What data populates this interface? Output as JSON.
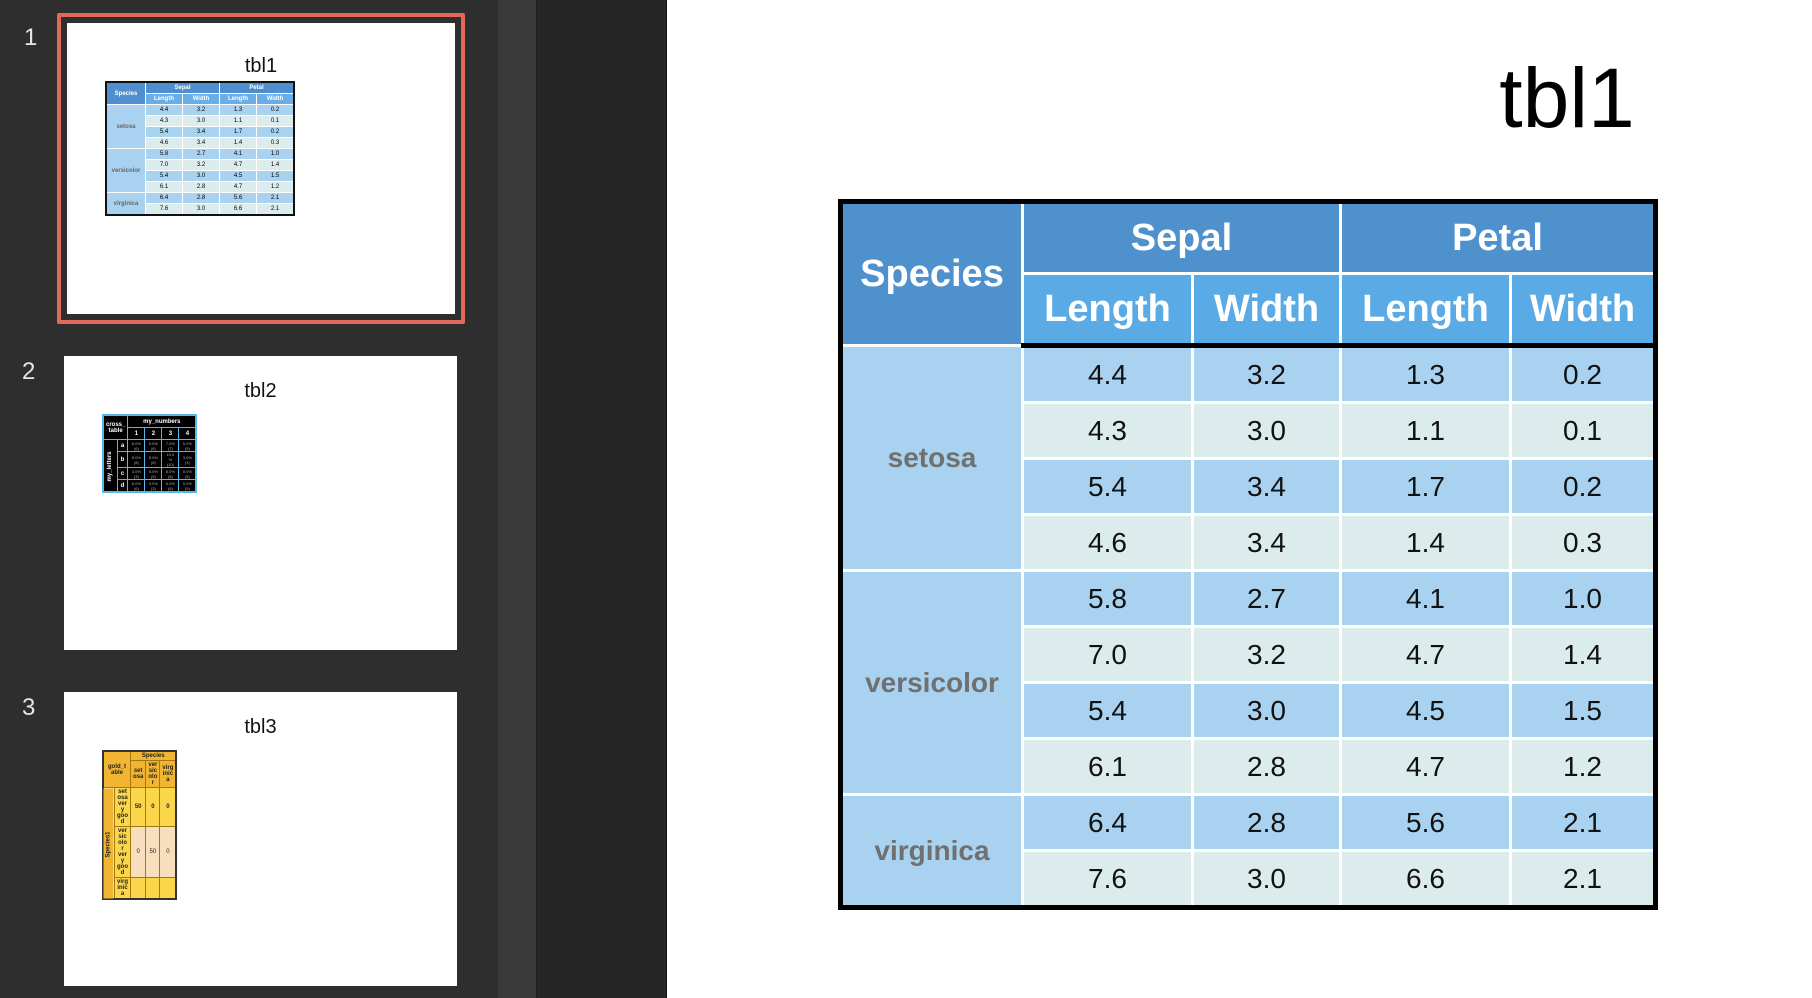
{
  "slides": [
    {
      "number": "1",
      "title": "tbl1",
      "selected": true
    },
    {
      "number": "2",
      "title": "tbl2",
      "selected": false
    },
    {
      "number": "3",
      "title": "tbl3",
      "selected": false
    }
  ],
  "thumb1": {
    "header_species": "Species",
    "group_sepal": "Sepal",
    "group_petal": "Petal",
    "sub_headers": [
      "Length",
      "Width",
      "Length",
      "Width"
    ],
    "species": [
      "setosa",
      "versicolor",
      "virginica"
    ],
    "rows": [
      [
        "4.4",
        "3.2",
        "1.3",
        "0.2"
      ],
      [
        "4.3",
        "3.0",
        "1.1",
        "0.1"
      ],
      [
        "5.4",
        "3.4",
        "1.7",
        "0.2"
      ],
      [
        "4.6",
        "3.4",
        "1.4",
        "0.3"
      ],
      [
        "5.8",
        "2.7",
        "4.1",
        "1.0"
      ],
      [
        "7.0",
        "3.2",
        "4.7",
        "1.4"
      ],
      [
        "5.4",
        "3.0",
        "4.5",
        "1.5"
      ],
      [
        "6.1",
        "2.8",
        "4.7",
        "1.2"
      ],
      [
        "6.4",
        "2.8",
        "5.6",
        "2.1"
      ],
      [
        "7.6",
        "3.0",
        "6.6",
        "2.1"
      ]
    ]
  },
  "thumb2": {
    "corner_label": "cross_\ntable",
    "column_group": "my_numbers",
    "row_group": "my_letters",
    "columns": [
      "1",
      "2",
      "3",
      "4"
    ],
    "row_labels": [
      "a",
      "b",
      "c",
      "d"
    ],
    "cells": [
      [
        "6.0%\n(6)",
        "6.0%\n(6)",
        "7.0%\n(7)",
        "5.0%\n(5)"
      ],
      [
        "8.0%\n(8)",
        "8.0%\n(8)",
        "10.0\n%\n(10)",
        "3.0%\n(3)"
      ],
      [
        "3.0%\n(3)",
        "5.0%\n(5)",
        "8.0%\n(8)",
        "5.0%\n(5)"
      ],
      [
        "6.0%\n(6)",
        "3.0%\n(3)",
        "6.0%\n(6)",
        "9.0%\n(9)"
      ]
    ]
  },
  "thumb3": {
    "corner_label": "gold_t\nable",
    "column_group": "Species",
    "row_group": "Species1",
    "columns": [
      "set\nosa",
      "ver\nsic\nolo\nr",
      "virg\ninic\na"
    ],
    "row_labels": [
      "set\nosa\nver\ny\ngoo\nd",
      "ver\nsic\nolo\nr\nver\ny\ngoo\nd",
      "virg\ninic\na"
    ],
    "cells": [
      [
        "50",
        "0",
        "0"
      ],
      [
        "0",
        "50",
        "0"
      ],
      [
        "",
        "",
        ""
      ]
    ]
  },
  "slide": {
    "title": "tbl1",
    "header_species": "Species",
    "group_sepal": "Sepal",
    "group_petal": "Petal",
    "sub_headers": [
      "Length",
      "Width",
      "Length",
      "Width"
    ],
    "groups": [
      {
        "species": "setosa",
        "rows": [
          [
            "4.4",
            "3.2",
            "1.3",
            "0.2"
          ],
          [
            "4.3",
            "3.0",
            "1.1",
            "0.1"
          ],
          [
            "5.4",
            "3.4",
            "1.7",
            "0.2"
          ],
          [
            "4.6",
            "3.4",
            "1.4",
            "0.3"
          ]
        ]
      },
      {
        "species": "versicolor",
        "rows": [
          [
            "5.8",
            "2.7",
            "4.1",
            "1.0"
          ],
          [
            "7.0",
            "3.2",
            "4.7",
            "1.4"
          ],
          [
            "5.4",
            "3.0",
            "4.5",
            "1.5"
          ],
          [
            "6.1",
            "2.8",
            "4.7",
            "1.2"
          ]
        ]
      },
      {
        "species": "virginica",
        "rows": [
          [
            "6.4",
            "2.8",
            "5.6",
            "2.1"
          ],
          [
            "7.6",
            "3.0",
            "6.6",
            "2.1"
          ]
        ]
      }
    ]
  },
  "colors": {
    "selection_border": "#e0695a",
    "header_blue": "#4f91cd",
    "subheader_blue": "#5aaae5",
    "row_blue": "#a8d2ef",
    "row_light": "#dcecec",
    "tbl2_border": "#58b7e8",
    "tbl3_gold": "#f1b531"
  }
}
